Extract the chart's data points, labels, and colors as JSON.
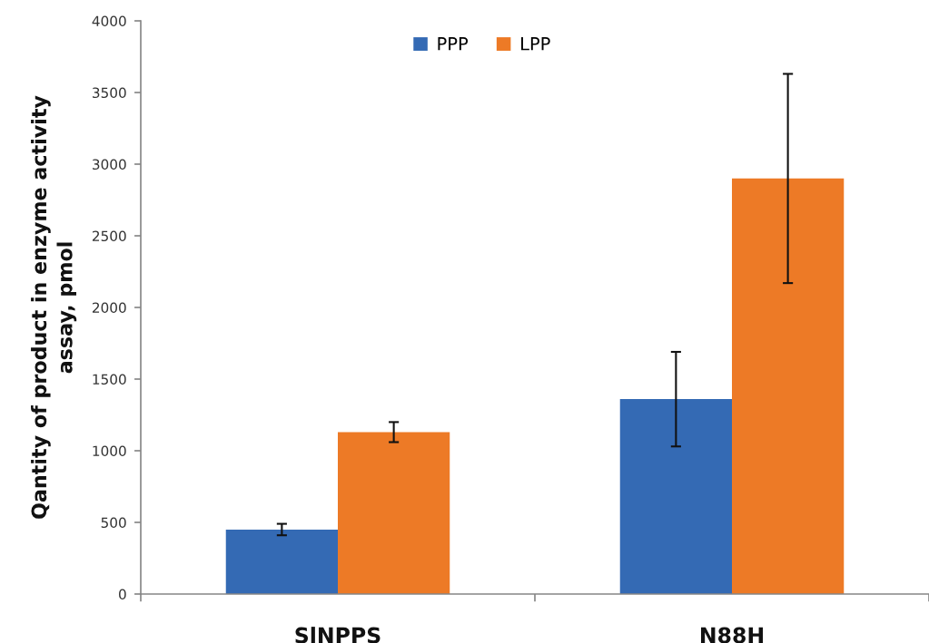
{
  "chart_data": {
    "type": "bar",
    "categories": [
      "SlNPPS",
      "N88H"
    ],
    "series": [
      {
        "name": "PPP",
        "color": "#346ab4",
        "values": [
          450,
          1360
        ],
        "errors": [
          40,
          330
        ]
      },
      {
        "name": "LPP",
        "color": "#ed7a26",
        "values": [
          1130,
          2900
        ],
        "errors": [
          70,
          730
        ]
      }
    ],
    "ylabel": "Qantity of product in enzyme activity\nassay, pmol",
    "ylim": [
      0,
      4000
    ],
    "yticks": [
      0,
      500,
      1000,
      1500,
      2000,
      2500,
      3000,
      3500,
      4000
    ],
    "legend": "top",
    "grid": false
  }
}
